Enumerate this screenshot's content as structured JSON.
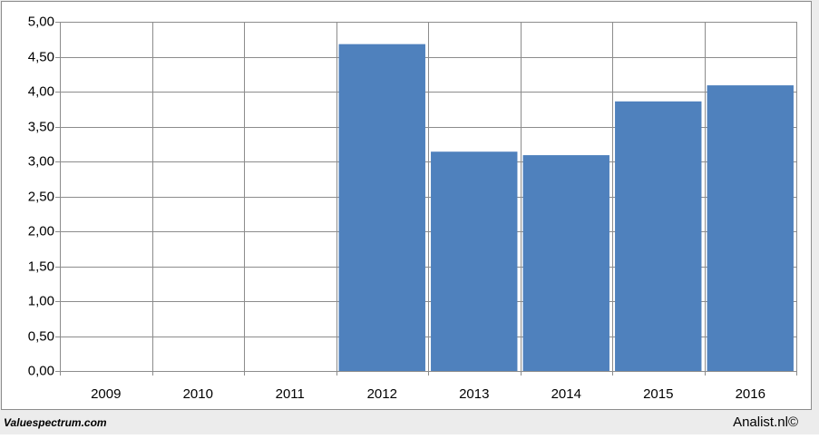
{
  "chart_data": {
    "type": "bar",
    "categories": [
      "2009",
      "2010",
      "2011",
      "2012",
      "2013",
      "2014",
      "2015",
      "2016"
    ],
    "values": [
      null,
      null,
      null,
      4.68,
      3.14,
      3.09,
      3.86,
      4.09
    ],
    "color": "#4f81bd",
    "ylim": [
      0,
      5
    ],
    "yticks": [
      {
        "value": 0,
        "label": "0,00"
      },
      {
        "value": 0.5,
        "label": "0,50"
      },
      {
        "value": 1,
        "label": "1,00"
      },
      {
        "value": 1.5,
        "label": "1,50"
      },
      {
        "value": 2,
        "label": "2,00"
      },
      {
        "value": 2.5,
        "label": "2,50"
      },
      {
        "value": 3,
        "label": "3,00"
      },
      {
        "value": 3.5,
        "label": "3,50"
      },
      {
        "value": 4,
        "label": "4,00"
      },
      {
        "value": 4.5,
        "label": "4,50"
      },
      {
        "value": 5,
        "label": "5,00"
      }
    ],
    "grid": true
  },
  "footer": {
    "left": "Valuespectrum.com",
    "right": "Analist.nl©"
  }
}
